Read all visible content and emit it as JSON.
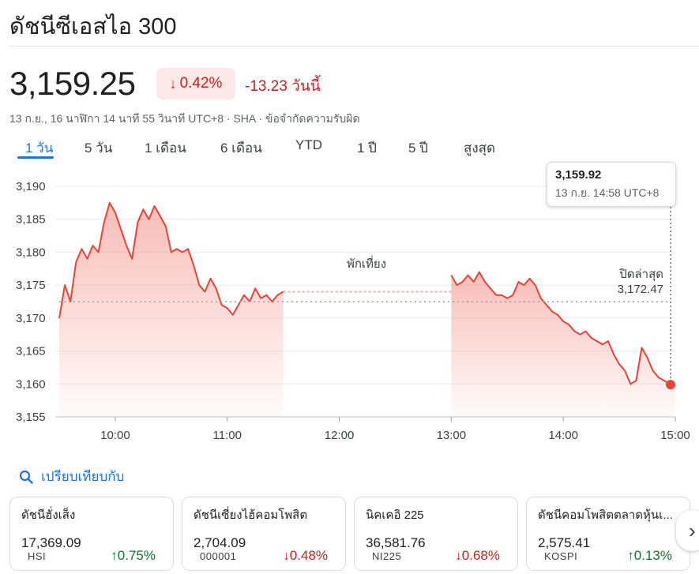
{
  "title": "ดัชนีซีเอสไอ 300",
  "price": "3,159.25",
  "change_pct": "0.42%",
  "change_abs": "-13.23 วันนี้",
  "meta": "13 ก.ย., 16 นาฬิกา 14 นาที 55 วินาที UTC+8 · SHA · ข้อจำกัดความรับผิด",
  "tabs": [
    "1 วัน",
    "5 วัน",
    "1 เดือน",
    "6 เดือน",
    "YTD",
    "1 ปี",
    "5 ปี",
    "สูงสุด"
  ],
  "active_tab": "1 วัน",
  "tooltip": {
    "value": "3,159.92",
    "time": "13 ก.ย. 14:58 UTC+8"
  },
  "lunch_label": "พักเที่ยง",
  "prev_close": {
    "label": "ปิดล่าสุด",
    "value": "3,172.47"
  },
  "compare_label": "เปรียบเทียบกับ",
  "colors": {
    "down": "#c5221f",
    "up": "#137333",
    "accent": "#1a73e8",
    "line": "#ea4335"
  },
  "chart_data": {
    "type": "area",
    "ylim": [
      3155,
      3190
    ],
    "y_ticks": [
      3190,
      3185,
      3180,
      3175,
      3170,
      3165,
      3160,
      3155
    ],
    "y_tick_labels": [
      "3,190",
      "3,185",
      "3,180",
      "3,175",
      "3,170",
      "3,165",
      "3,160",
      "3,155"
    ],
    "x_ticks": [
      "10:00",
      "11:00",
      "12:00",
      "13:00",
      "14:00",
      "15:00"
    ],
    "previous_close": 3172.47,
    "morning": [
      [
        "9:30",
        3170.0
      ],
      [
        "9:33",
        3175.0
      ],
      [
        "9:36",
        3172.5
      ],
      [
        "9:39",
        3178.5
      ],
      [
        "9:42",
        3180.5
      ],
      [
        "9:45",
        3179.0
      ],
      [
        "9:48",
        3181.0
      ],
      [
        "9:51",
        3180.0
      ],
      [
        "9:54",
        3184.5
      ],
      [
        "9:57",
        3187.5
      ],
      [
        "10:00",
        3186.0
      ],
      [
        "10:03",
        3183.5
      ],
      [
        "10:06",
        3181.0
      ],
      [
        "10:09",
        3179.0
      ],
      [
        "10:12",
        3184.5
      ],
      [
        "10:15",
        3186.5
      ],
      [
        "10:18",
        3185.0
      ],
      [
        "10:21",
        3187.0
      ],
      [
        "10:24",
        3185.5
      ],
      [
        "10:27",
        3184.0
      ],
      [
        "10:30",
        3180.0
      ],
      [
        "10:33",
        3180.5
      ],
      [
        "10:36",
        3180.0
      ],
      [
        "10:39",
        3180.5
      ],
      [
        "10:42",
        3178.0
      ],
      [
        "10:45",
        3175.0
      ],
      [
        "10:48",
        3174.0
      ],
      [
        "10:51",
        3176.0
      ],
      [
        "10:54",
        3174.5
      ],
      [
        "10:57",
        3172.0
      ],
      [
        "11:00",
        3171.5
      ],
      [
        "11:03",
        3170.5
      ],
      [
        "11:06",
        3172.0
      ],
      [
        "11:09",
        3173.5
      ],
      [
        "11:12",
        3172.5
      ],
      [
        "11:15",
        3174.5
      ],
      [
        "11:18",
        3173.0
      ],
      [
        "11:21",
        3173.5
      ],
      [
        "11:24",
        3172.5
      ],
      [
        "11:27",
        3173.5
      ],
      [
        "11:30",
        3174.0
      ]
    ],
    "afternoon": [
      [
        "13:00",
        3176.5
      ],
      [
        "13:03",
        3175.0
      ],
      [
        "13:06",
        3175.5
      ],
      [
        "13:09",
        3176.5
      ],
      [
        "13:12",
        3175.5
      ],
      [
        "13:15",
        3177.0
      ],
      [
        "13:18",
        3175.5
      ],
      [
        "13:21",
        3174.5
      ],
      [
        "13:24",
        3173.5
      ],
      [
        "13:27",
        3173.5
      ],
      [
        "13:30",
        3173.0
      ],
      [
        "13:33",
        3173.5
      ],
      [
        "13:36",
        3175.5
      ],
      [
        "13:39",
        3175.0
      ],
      [
        "13:42",
        3176.0
      ],
      [
        "13:45",
        3175.0
      ],
      [
        "13:48",
        3173.0
      ],
      [
        "13:51",
        3172.0
      ],
      [
        "13:54",
        3171.0
      ],
      [
        "13:57",
        3170.5
      ],
      [
        "14:00",
        3169.5
      ],
      [
        "14:03",
        3169.0
      ],
      [
        "14:06",
        3168.0
      ],
      [
        "14:09",
        3167.5
      ],
      [
        "14:12",
        3168.0
      ],
      [
        "14:15",
        3167.0
      ],
      [
        "14:18",
        3166.5
      ],
      [
        "14:21",
        3166.0
      ],
      [
        "14:24",
        3166.5
      ],
      [
        "14:27",
        3164.5
      ],
      [
        "14:30",
        3163.0
      ],
      [
        "14:33",
        3162.0
      ],
      [
        "14:36",
        3160.0
      ],
      [
        "14:39",
        3160.5
      ],
      [
        "14:42",
        3165.5
      ],
      [
        "14:45",
        3164.0
      ],
      [
        "14:48",
        3162.0
      ],
      [
        "14:51",
        3161.0
      ],
      [
        "14:54",
        3160.5
      ],
      [
        "14:57",
        3160.0
      ],
      [
        "15:00",
        3159.9
      ]
    ]
  },
  "cards": [
    {
      "name": "ดัชนีฮั่งเส็ง",
      "value": "17,369.09",
      "symbol": "HSI",
      "pct": "0.75%",
      "dir": "up"
    },
    {
      "name": "ดัชนีเซี่ยงไฮ้คอมโพสิต",
      "value": "2,704.09",
      "symbol": "000001",
      "pct": "0.48%",
      "dir": "down"
    },
    {
      "name": "นิคเคอิ 225",
      "value": "36,581.76",
      "symbol": "NI225",
      "pct": "0.68%",
      "dir": "down"
    },
    {
      "name": "ดัชนีคอมโพสิตตลาดหุ้นเ...",
      "value": "2,575.41",
      "symbol": "KOSPI",
      "pct": "0.13%",
      "dir": "up"
    }
  ]
}
